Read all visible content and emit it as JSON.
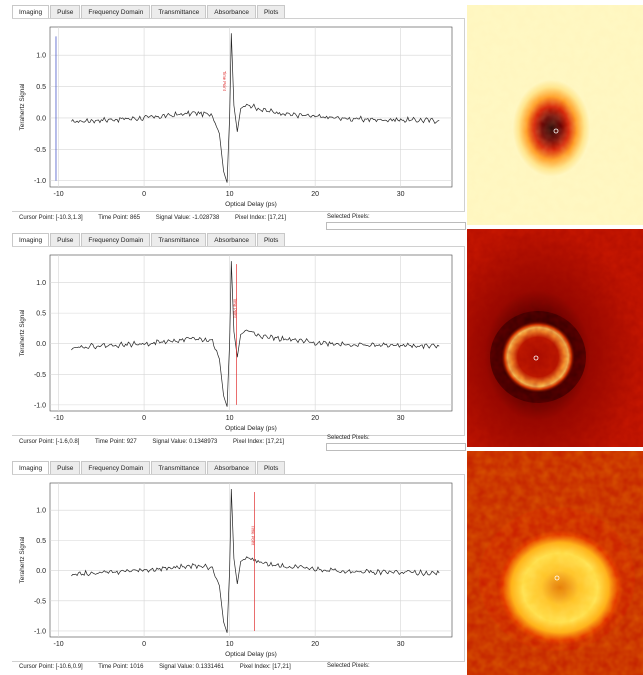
{
  "tabs": [
    "Imaging",
    "Pulse",
    "Frequency Domain",
    "Transmittance",
    "Absorbance",
    "Plots"
  ],
  "panels": [
    {
      "cursor_point": "Cursor Point: [-10.3,1.3]",
      "time_point": "Time Point: 865",
      "signal_value": "Signal Value: -1.028738",
      "pixel_index": "Pixel Index: [17,21]",
      "selected_pixels": "Selected Pixels:",
      "time_point_label": "Time Point",
      "marker_x": -10.3
    },
    {
      "cursor_point": "Cursor Point: [-1.6,0.8]",
      "time_point": "Time Point: 927",
      "signal_value": "Signal Value: 0.1348973",
      "pixel_index": "Pixel Index: [17,21]",
      "selected_pixels": "Selected Pixels:",
      "time_point_label": "Time Point",
      "marker_x": 10.8
    },
    {
      "cursor_point": "Cursor Point: [-10.6,0.9]",
      "time_point": "Time Point: 1016",
      "signal_value": "Signal Value: 0.1331461",
      "pixel_index": "Pixel Index: [17,21]",
      "selected_pixels": "Selected Pixels:",
      "time_point_label": "Time Point",
      "marker_x": 12.9
    }
  ],
  "chart_data": [
    {
      "type": "line",
      "xlabel": "Optical Delay (ps)",
      "ylabel": "Terahertz Signal",
      "xlim": [
        -11,
        36
      ],
      "ylim": [
        -1.1,
        1.45
      ],
      "xticks": [
        -10,
        0,
        10,
        20,
        30
      ],
      "yticks": [
        1.0,
        0.5,
        0.0,
        -0.5,
        -1.0
      ],
      "grid": true,
      "series": [
        {
          "x": [
            -8.5,
            -6,
            -3,
            0,
            3,
            6,
            8,
            8.8,
            9.3,
            9.7,
            10.0,
            10.2,
            10.5,
            10.9,
            11.3,
            12,
            14,
            17,
            20,
            25,
            30,
            34.5
          ],
          "values": [
            -0.06,
            -0.04,
            -0.02,
            0.0,
            0.04,
            0.08,
            0.05,
            -0.25,
            -0.85,
            -1.03,
            0.0,
            1.35,
            0.2,
            -0.22,
            0.15,
            0.22,
            0.12,
            0.06,
            0.02,
            -0.02,
            -0.03,
            -0.04
          ]
        }
      ]
    },
    {
      "type": "line",
      "xlabel": "Optical Delay (ps)",
      "ylabel": "Terahertz Signal",
      "xlim": [
        -11,
        36
      ],
      "ylim": [
        -1.1,
        1.45
      ],
      "xticks": [
        -10,
        0,
        10,
        20,
        30
      ],
      "yticks": [
        1.0,
        0.5,
        0.0,
        -0.5,
        -1.0
      ],
      "grid": true,
      "series": [
        {
          "x": [
            -8.5,
            -6,
            -3,
            0,
            3,
            6,
            8,
            8.8,
            9.3,
            9.7,
            10.0,
            10.2,
            10.5,
            10.9,
            11.3,
            12,
            14,
            17,
            20,
            25,
            30,
            34.5
          ],
          "values": [
            -0.06,
            -0.04,
            -0.02,
            0.0,
            0.04,
            0.08,
            0.05,
            -0.25,
            -0.85,
            -1.03,
            0.0,
            1.35,
            0.2,
            -0.22,
            0.15,
            0.22,
            0.12,
            0.06,
            0.02,
            -0.02,
            -0.03,
            -0.04
          ]
        }
      ]
    },
    {
      "type": "line",
      "xlabel": "Optical Delay (ps)",
      "ylabel": "Terahertz Signal",
      "xlim": [
        -11,
        36
      ],
      "ylim": [
        -1.1,
        1.45
      ],
      "xticks": [
        -10,
        0,
        10,
        20,
        30
      ],
      "yticks": [
        1.0,
        0.5,
        0.0,
        -0.5,
        -1.0
      ],
      "grid": true,
      "series": [
        {
          "x": [
            -8.5,
            -6,
            -3,
            0,
            3,
            6,
            8,
            8.8,
            9.3,
            9.7,
            10.0,
            10.2,
            10.5,
            10.9,
            11.3,
            12,
            14,
            17,
            20,
            25,
            30,
            34.5
          ],
          "values": [
            -0.06,
            -0.04,
            -0.02,
            0.0,
            0.04,
            0.08,
            0.05,
            -0.25,
            -0.85,
            -1.03,
            0.0,
            1.35,
            0.2,
            -0.22,
            0.15,
            0.22,
            0.12,
            0.06,
            0.02,
            -0.02,
            -0.03,
            -0.04
          ]
        }
      ]
    }
  ],
  "colors": {
    "trace": "#222222",
    "marker": "#e03030",
    "heat_hot": "#ffff80",
    "heat_cold": "#300000"
  }
}
